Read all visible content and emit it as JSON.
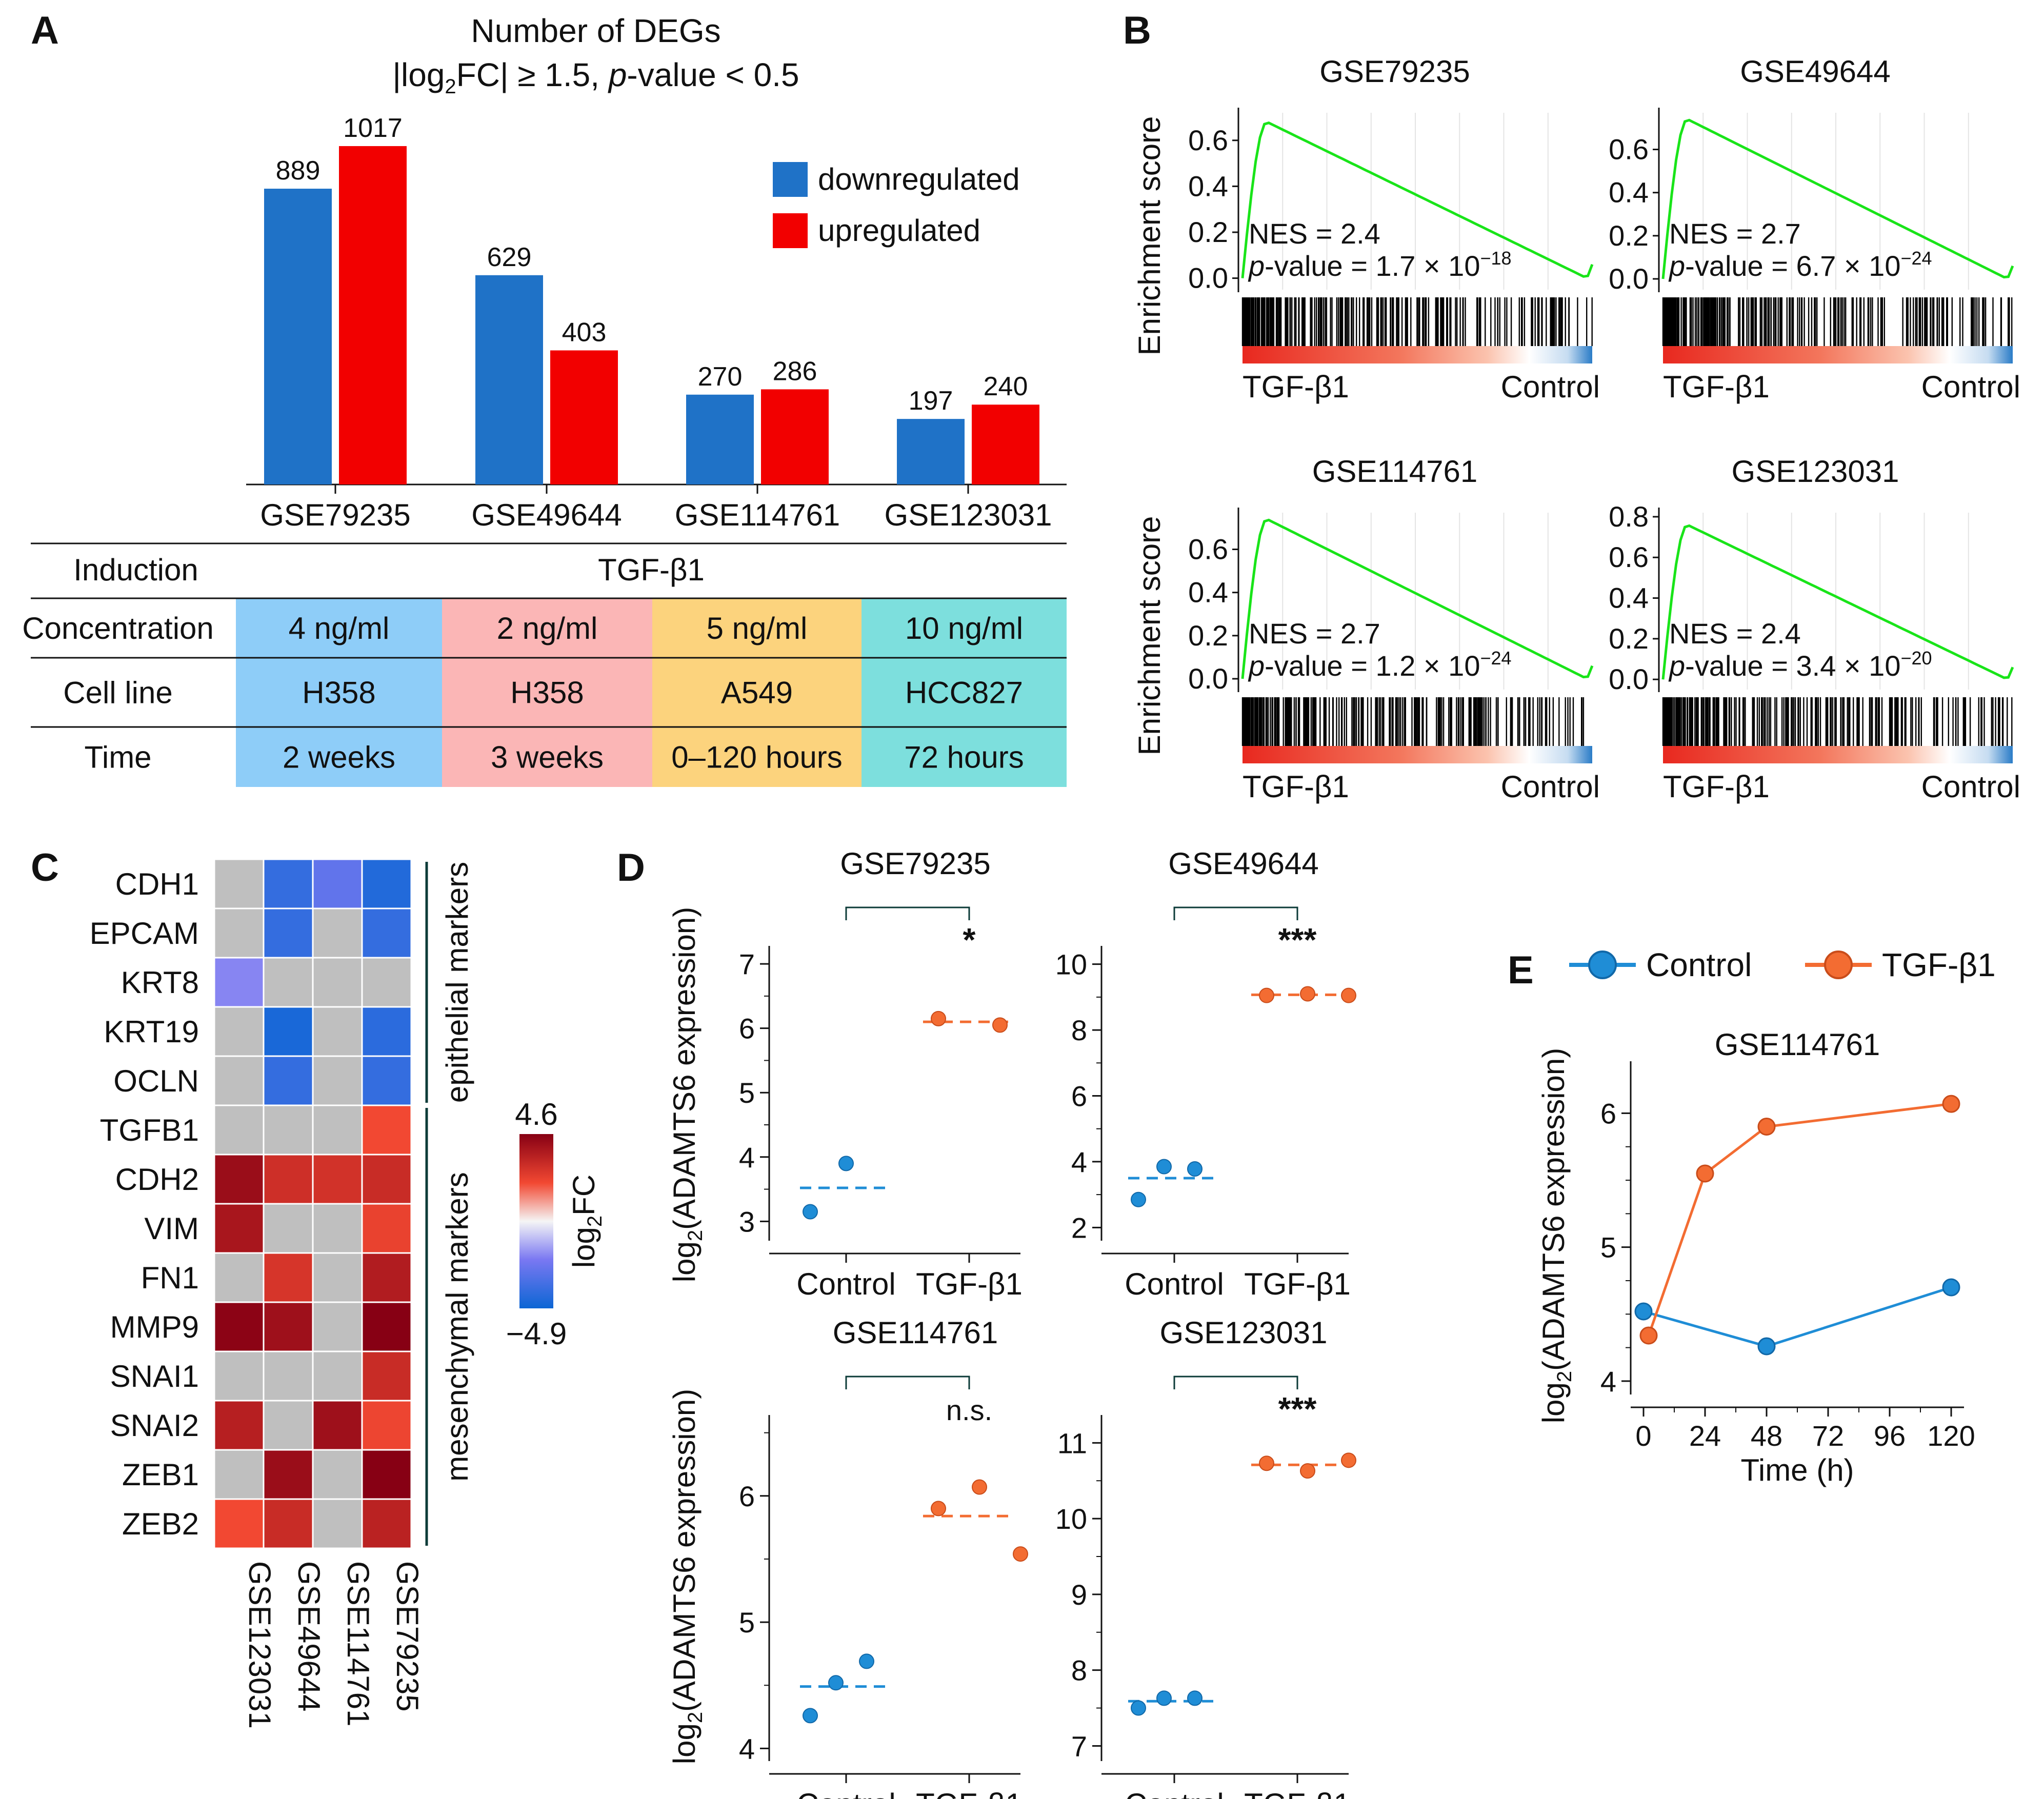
{
  "panel_labels": {
    "A": "A",
    "B": "B",
    "C": "C",
    "D": "D",
    "E": "E"
  },
  "colors": {
    "down": "#1f72c7",
    "up": "#f20000",
    "gsea_line": "#19e419",
    "control": "#1f8dd6",
    "tgf": "#f36c32"
  },
  "chart_data": [
    {
      "panel": "A",
      "type": "bar",
      "title": "Number of DEGs",
      "subtitle": {
        "pre": "|log",
        "sub": "2",
        "mid": "FC| ≥ 1.5, ",
        "it": "p",
        "post": "-value < 0.5"
      },
      "categories": [
        "GSE79235",
        "GSE49644",
        "GSE114761",
        "GSE123031"
      ],
      "series": [
        {
          "name": "downregulated",
          "values": [
            889,
            629,
            270,
            197
          ]
        },
        {
          "name": "upregulated",
          "values": [
            1017,
            403,
            286,
            240
          ]
        }
      ],
      "value_labels": [
        [
          "889",
          "1017"
        ],
        [
          "629",
          "403"
        ],
        [
          "270",
          "286"
        ],
        [
          "197",
          "240"
        ]
      ],
      "ylim": [
        0,
        1100
      ],
      "table": {
        "induction_label": "Induction",
        "induction_value": "TGF-β1",
        "rows": [
          {
            "label": "Concentration",
            "cells": [
              "4 ng/ml",
              "2 ng/ml",
              "5 ng/ml",
              "10 ng/ml"
            ]
          },
          {
            "label": "Cell line",
            "cells": [
              "H358",
              "H358",
              "A549",
              "HCC827"
            ]
          },
          {
            "label": "Time",
            "cells": [
              "2 weeks",
              "3 weeks",
              "0–120 hours",
              "72 hours"
            ]
          }
        ],
        "column_colors": [
          "#8ecdf8",
          "#fbb6b6",
          "#fcd37d",
          "#7ddfdd"
        ]
      }
    },
    {
      "panel": "B",
      "type": "line",
      "ylabel": "Enrichment score",
      "x_left_label": "TGF-β1",
      "x_right_label": "Control",
      "plots": [
        {
          "title": "GSE79235",
          "ticks": [
            0.0,
            0.2,
            0.4,
            0.6
          ],
          "tick_labels": [
            "0.0",
            "0.2",
            "0.4",
            "0.6"
          ],
          "ylim": [
            -0.05,
            0.72
          ],
          "peak": 0.68,
          "nes": "NES = 2.4",
          "pval_text": "-value = 1.7 × 10",
          "pval_exp": "−18"
        },
        {
          "title": "GSE49644",
          "ticks": [
            0.0,
            0.2,
            0.4,
            0.6
          ],
          "tick_labels": [
            "0.0",
            "0.2",
            "0.4",
            "0.6"
          ],
          "ylim": [
            -0.05,
            0.77
          ],
          "peak": 0.74,
          "nes": "NES = 2.7",
          "pval_text": "-value = 6.7 × 10",
          "pval_exp": "−24"
        },
        {
          "title": "GSE114761",
          "ticks": [
            0.0,
            0.2,
            0.4,
            0.6
          ],
          "tick_labels": [
            "0.0",
            "0.2",
            "0.4",
            "0.6"
          ],
          "ylim": [
            -0.05,
            0.77
          ],
          "peak": 0.74,
          "nes": "NES = 2.7",
          "pval_text": "-value = 1.2 × 10",
          "pval_exp": "−24"
        },
        {
          "title": "GSE123031",
          "ticks": [
            0.0,
            0.2,
            0.4,
            0.6,
            0.8
          ],
          "tick_labels": [
            "0.0",
            "0.2",
            "0.4",
            "0.6",
            "0.8"
          ],
          "ylim": [
            -0.05,
            0.82
          ],
          "peak": 0.76,
          "nes": "NES = 2.4",
          "pval_text": "-value = 3.4 × 10",
          "pval_exp": "−20"
        }
      ]
    },
    {
      "panel": "C",
      "type": "heatmap",
      "rows": [
        "CDH1",
        "EPCAM",
        "KRT8",
        "KRT19",
        "OCLN",
        "TGFB1",
        "CDH2",
        "VIM",
        "FN1",
        "MMP9",
        "SNAI1",
        "SNAI2",
        "ZEB1",
        "ZEB2"
      ],
      "columns": [
        "GSE123031",
        "GSE49644",
        "GSE114761",
        "GSE79235"
      ],
      "values": [
        [
          null,
          -4.0,
          -3.0,
          -4.4
        ],
        [
          null,
          -4.0,
          null,
          -4.0
        ],
        [
          -2.2,
          null,
          null,
          null
        ],
        [
          null,
          -4.6,
          null,
          -4.2
        ],
        [
          null,
          -4.0,
          null,
          -4.0
        ],
        [
          null,
          null,
          null,
          2.3
        ],
        [
          4.2,
          3.1,
          3.0,
          3.2
        ],
        [
          3.9,
          null,
          null,
          2.5
        ],
        [
          null,
          2.9,
          null,
          3.7
        ],
        [
          4.5,
          4.1,
          null,
          4.6
        ],
        [
          null,
          null,
          null,
          3.2
        ],
        [
          3.6,
          null,
          4.1,
          2.4
        ],
        [
          null,
          4.2,
          null,
          4.6
        ],
        [
          2.3,
          3.2,
          null,
          3.5
        ]
      ],
      "group_labels": [
        {
          "name": "epithelial markers",
          "rows": [
            0,
            4
          ]
        },
        {
          "name": "mesenchymal markers",
          "rows": [
            5,
            13
          ]
        }
      ],
      "colorbar": {
        "min": -4.9,
        "max": 4.6,
        "min_label": "−4.9",
        "max_label": "4.6",
        "label_pre": "log",
        "label_sub": "2",
        "label_post": "FC"
      }
    },
    {
      "panel": "D",
      "type": "scatter",
      "ylabel_pre": "log",
      "ylabel_sub": "2",
      "ylabel_post": "(ADAMTS6 expression)",
      "categories": [
        "Control",
        "TGF-β1"
      ],
      "plots": [
        {
          "title": "GSE79235",
          "ylim": [
            2.7,
            7.2
          ],
          "ticks": [
            3,
            4,
            5,
            6,
            7
          ],
          "control": [
            3.15,
            3.9
          ],
          "control_mean": 3.52,
          "tgf": [
            6.15,
            6.05
          ],
          "tgf_mean": 6.1,
          "sig": "*"
        },
        {
          "title": "GSE49644",
          "ylim": [
            1.6,
            10.4
          ],
          "ticks": [
            2,
            4,
            6,
            8,
            10
          ],
          "control": [
            2.85,
            3.85,
            3.78
          ],
          "control_mean": 3.5,
          "tgf": [
            9.05,
            9.1,
            9.05
          ],
          "tgf_mean": 9.07,
          "sig": "***"
        },
        {
          "title": "GSE114761",
          "ylim": [
            3.9,
            6.6
          ],
          "ticks": [
            4,
            5,
            6
          ],
          "control": [
            4.26,
            4.52,
            4.69
          ],
          "control_mean": 4.49,
          "tgf": [
            5.9,
            6.07,
            5.54
          ],
          "tgf_mean": 5.84,
          "sig": "n.s."
        },
        {
          "title": "GSE123031",
          "ylim": [
            6.8,
            11.3
          ],
          "ticks": [
            7,
            8,
            9,
            10,
            11
          ],
          "control": [
            7.5,
            7.63,
            7.63
          ],
          "control_mean": 7.59,
          "tgf": [
            10.73,
            10.63,
            10.77
          ],
          "tgf_mean": 10.71,
          "sig": "***"
        }
      ]
    },
    {
      "panel": "E",
      "type": "line",
      "title": "GSE114761",
      "xlabel": "Time (h)",
      "ylabel_pre": "log",
      "ylabel_sub": "2",
      "ylabel_post": "(ADAMTS6 expression)",
      "x_ticks": [
        0,
        24,
        48,
        72,
        96,
        120
      ],
      "y_ticks": [
        4,
        5,
        6
      ],
      "xlim": [
        -5,
        125
      ],
      "ylim": [
        3.9,
        6.35
      ],
      "series": [
        {
          "name": "Control",
          "x": [
            0,
            48,
            120
          ],
          "y": [
            4.52,
            4.26,
            4.7
          ]
        },
        {
          "name": "TGF-β1",
          "x": [
            2,
            24,
            48,
            120
          ],
          "y": [
            4.34,
            5.55,
            5.9,
            6.07
          ]
        }
      ]
    }
  ]
}
